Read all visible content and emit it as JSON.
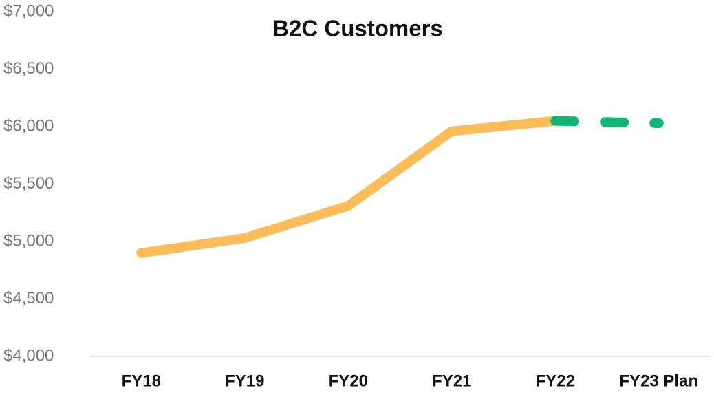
{
  "chart_data": {
    "type": "line",
    "title": "B2C Customers",
    "categories": [
      "FY18",
      "FY19",
      "FY20",
      "FY21",
      "FY22",
      "FY23 Plan"
    ],
    "series": [
      {
        "color": "#fbbc5a",
        "style": "solid",
        "values": [
          4900,
          5030,
          5310,
          5960,
          6050,
          null
        ]
      },
      {
        "color": "#13b374",
        "style": "dashed",
        "values": [
          null,
          null,
          null,
          null,
          6050,
          6030
        ]
      }
    ],
    "ylim": [
      4000,
      7000
    ],
    "yticks": [
      {
        "value": 4000,
        "label": "$4,000"
      },
      {
        "value": 4500,
        "label": "$4,500"
      },
      {
        "value": 5000,
        "label": "$5,000"
      },
      {
        "value": 5500,
        "label": "$5,500"
      },
      {
        "value": 6000,
        "label": "$6,000"
      },
      {
        "value": 6500,
        "label": "$6,500"
      },
      {
        "value": 7000,
        "label": "$7,000"
      }
    ],
    "grid": false
  }
}
